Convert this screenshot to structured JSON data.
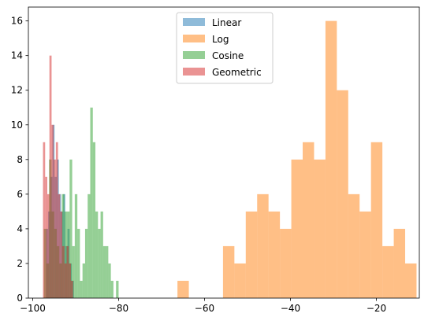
{
  "chart_data": {
    "type": "histogram",
    "title": "",
    "xlabel": "",
    "ylabel": "",
    "xlim": [
      -101,
      -10
    ],
    "ylim": [
      0,
      16.8
    ],
    "x_ticks": [
      -100,
      -80,
      -60,
      -40,
      -20
    ],
    "x_tick_labels": [
      "−100",
      "−80",
      "−60",
      "−40",
      "−20"
    ],
    "y_ticks": [
      0,
      2,
      4,
      6,
      8,
      10,
      12,
      14,
      16
    ],
    "y_tick_labels": [
      "0",
      "2",
      "4",
      "6",
      "8",
      "10",
      "12",
      "14",
      "16"
    ],
    "grid": false,
    "legend": {
      "placement": "upper-center"
    },
    "series": [
      {
        "name": "Linear",
        "color": "#1f77b4",
        "alpha": 0.5,
        "bin_edges": [
          -97.4,
          -96.9,
          -96.4,
          -95.9,
          -95.4,
          -94.9,
          -94.4,
          -93.9,
          -93.4,
          -92.9,
          -92.4,
          -91.9,
          -91.4,
          -90.9,
          -90.4,
          -89.9
        ],
        "counts": [
          0,
          4,
          5,
          7,
          10,
          7,
          8,
          6,
          5,
          6,
          3,
          4,
          2,
          1,
          0
        ]
      },
      {
        "name": "Log",
        "color": "#ff7f0e",
        "alpha": 0.5,
        "bin_edges": [
          -66.3,
          -63.65,
          -61.0,
          -58.35,
          -55.7,
          -53.05,
          -50.4,
          -47.75,
          -45.1,
          -42.45,
          -39.8,
          -37.15,
          -34.5,
          -31.85,
          -29.2,
          -26.55,
          -23.9,
          -21.25,
          -18.6,
          -15.95,
          -13.3,
          -10.65
        ],
        "counts": [
          1,
          0,
          0,
          0,
          3,
          2,
          5,
          6,
          5,
          4,
          8,
          9,
          8,
          16,
          12,
          6,
          5,
          9,
          3,
          4,
          2
        ]
      },
      {
        "name": "Cosine",
        "color": "#2ca02c",
        "alpha": 0.5,
        "bin_edges": [
          -97.4,
          -96.8,
          -96.2,
          -95.6,
          -95.0,
          -94.4,
          -93.8,
          -93.2,
          -92.6,
          -92.0,
          -91.4,
          -90.8,
          -90.2,
          -89.6,
          -89.0,
          -88.4,
          -87.8,
          -87.2,
          -86.6,
          -86.0,
          -85.4,
          -84.8,
          -84.2,
          -83.6,
          -83.0,
          -82.4,
          -81.8,
          -81.2,
          -80.6,
          -80.0
        ],
        "counts": [
          4,
          2,
          8,
          5,
          4,
          3,
          2,
          6,
          5,
          5,
          8,
          3,
          6,
          4,
          1,
          2,
          4,
          6,
          11,
          9,
          5,
          4,
          5,
          3,
          3,
          2,
          1,
          0,
          1
        ]
      },
      {
        "name": "Geometric",
        "color": "#d62728",
        "alpha": 0.5,
        "bin_edges": [
          -97.6,
          -97.1,
          -96.6,
          -96.1,
          -95.6,
          -95.1,
          -94.6,
          -94.1,
          -93.6,
          -93.1,
          -92.6,
          -92.1,
          -91.6,
          -91.1,
          -90.6
        ],
        "counts": [
          9,
          7,
          6,
          14,
          10,
          8,
          9,
          6,
          5,
          3,
          2,
          3,
          2,
          1
        ]
      }
    ]
  }
}
